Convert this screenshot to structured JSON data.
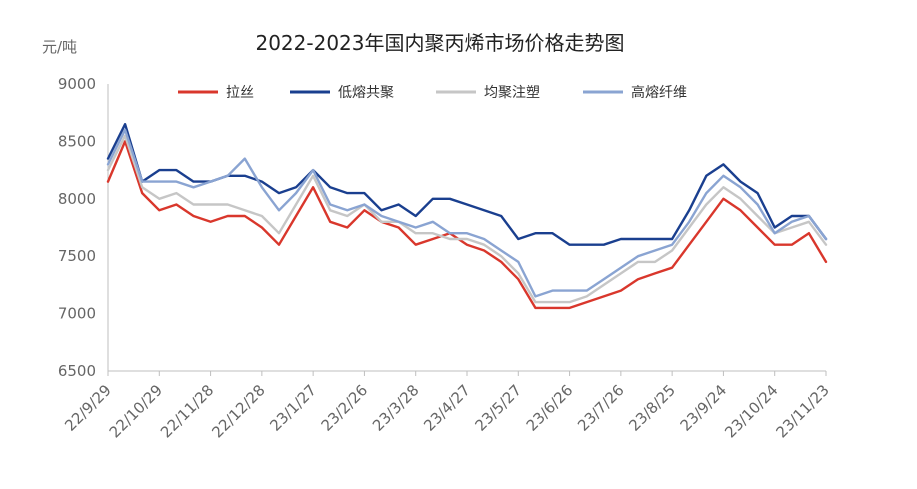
{
  "chart_data": {
    "type": "line",
    "title": "2022-2023年国内聚丙烯市场价格走势图",
    "ylabel": "元/吨",
    "xlabel": "",
    "ylim": [
      6500,
      9000
    ],
    "yticks": [
      "9000",
      "8500",
      "8000",
      "7500",
      "7000",
      "6500"
    ],
    "x_ticks": [
      "22/9/29",
      "22/10/29",
      "22/11/28",
      "22/12/28",
      "23/1/27",
      "23/2/26",
      "23/3/28",
      "23/4/27",
      "23/5/27",
      "23/6/26",
      "23/7/26",
      "23/8/25",
      "23/9/24",
      "23/10/24",
      "23/11/23"
    ],
    "x": [
      "22/9/29",
      "22/10/9",
      "22/10/19",
      "22/10/29",
      "22/11/8",
      "22/11/18",
      "22/11/28",
      "22/12/8",
      "22/12/18",
      "22/12/28",
      "23/1/7",
      "23/1/17",
      "23/1/27",
      "23/2/6",
      "23/2/16",
      "23/2/26",
      "23/3/8",
      "23/3/18",
      "23/3/28",
      "23/4/7",
      "23/4/17",
      "23/4/27",
      "23/5/7",
      "23/5/17",
      "23/5/27",
      "23/6/6",
      "23/6/16",
      "23/6/26",
      "23/7/6",
      "23/7/16",
      "23/7/26",
      "23/8/5",
      "23/8/15",
      "23/8/25",
      "23/9/4",
      "23/9/14",
      "23/9/24",
      "23/10/4",
      "23/10/14",
      "23/10/24",
      "23/11/3",
      "23/11/13",
      "23/11/23"
    ],
    "legend_position": "top",
    "grid": false,
    "series": [
      {
        "name": "拉丝",
        "color": "#d9372c",
        "values": [
          8150,
          8500,
          8050,
          7900,
          7950,
          7850,
          7800,
          7850,
          7850,
          7750,
          7600,
          7850,
          8100,
          7800,
          7750,
          7900,
          7800,
          7750,
          7600,
          7650,
          7700,
          7600,
          7550,
          7450,
          7300,
          7050,
          7050,
          7050,
          7100,
          7150,
          7200,
          7300,
          7350,
          7400,
          7600,
          7800,
          8000,
          7900,
          7750,
          7600,
          7600,
          7700,
          7450
        ]
      },
      {
        "name": "低熔共聚",
        "color": "#1a3f8f",
        "values": [
          8350,
          8650,
          8150,
          8250,
          8250,
          8150,
          8150,
          8200,
          8200,
          8150,
          8050,
          8100,
          8250,
          8100,
          8050,
          8050,
          7900,
          7950,
          7850,
          8000,
          8000,
          7950,
          7900,
          7850,
          7650,
          7700,
          7700,
          7600,
          7600,
          7600,
          7650,
          7650,
          7650,
          7650,
          7900,
          8200,
          8300,
          8150,
          8050,
          7750,
          7850,
          7850,
          7650
        ]
      },
      {
        "name": "均聚注塑",
        "color": "#c6c6c6",
        "values": [
          8250,
          8550,
          8100,
          8000,
          8050,
          7950,
          7950,
          7950,
          7900,
          7850,
          7700,
          7950,
          8200,
          7900,
          7850,
          7950,
          7800,
          7800,
          7700,
          7700,
          7650,
          7650,
          7600,
          7500,
          7350,
          7100,
          7100,
          7100,
          7150,
          7250,
          7350,
          7450,
          7450,
          7550,
          7750,
          7950,
          8100,
          8000,
          7850,
          7700,
          7750,
          7800,
          7600
        ]
      },
      {
        "name": "高熔纤维",
        "color": "#8aa4d2",
        "values": [
          8300,
          8600,
          8150,
          8150,
          8150,
          8100,
          8150,
          8200,
          8350,
          8100,
          7900,
          8050,
          8250,
          7950,
          7900,
          7950,
          7850,
          7800,
          7750,
          7800,
          7700,
          7700,
          7650,
          7550,
          7450,
          7150,
          7200,
          7200,
          7200,
          7300,
          7400,
          7500,
          7550,
          7600,
          7800,
          8050,
          8200,
          8100,
          7950,
          7700,
          7800,
          7850,
          7650
        ]
      }
    ]
  }
}
